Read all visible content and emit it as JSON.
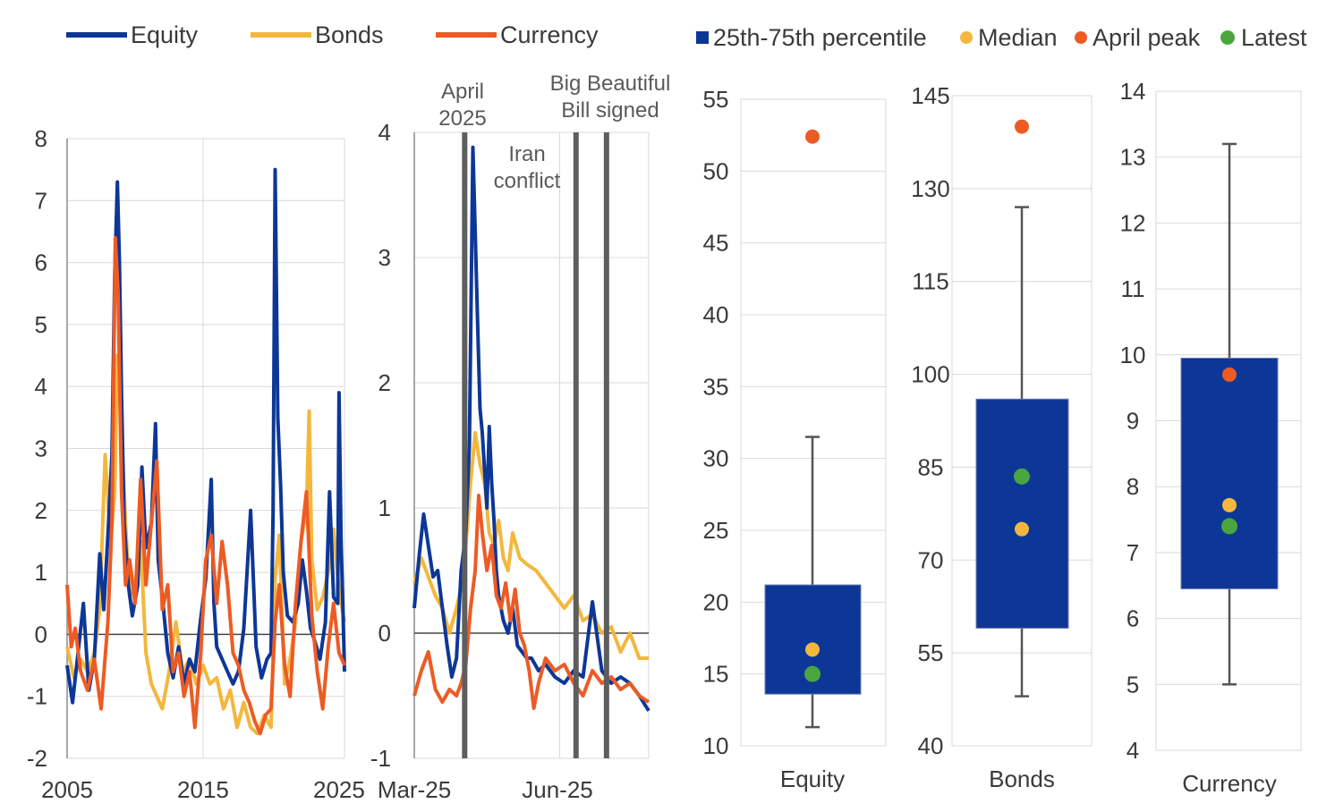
{
  "chart_data": [
    {
      "type": "line",
      "panel": "long-history",
      "x_range": [
        2005,
        2025.4
      ],
      "xticks": [
        "2005",
        "2015",
        "2025"
      ],
      "ylim": [
        -2,
        8
      ],
      "yticks": [
        "-2",
        "-1",
        "0",
        "1",
        "2",
        "3",
        "4",
        "5",
        "6",
        "7",
        "8"
      ],
      "legend": [
        "Equity",
        "Bonds",
        "Currency"
      ],
      "colors": {
        "Equity": "#0d3797",
        "Bonds": "#f3b73d",
        "Currency": "#ed5b24"
      },
      "series": [
        {
          "name": "Equity",
          "x": [
            2005,
            2005.4,
            2005.8,
            2006.2,
            2006.6,
            2007,
            2007.4,
            2007.7,
            2008,
            2008.3,
            2008.5,
            2008.7,
            2008.85,
            2009,
            2009.2,
            2009.5,
            2009.8,
            2010.2,
            2010.5,
            2010.8,
            2011.2,
            2011.5,
            2011.7,
            2012,
            2012.4,
            2012.8,
            2013.2,
            2013.6,
            2014,
            2014.4,
            2014.8,
            2015.2,
            2015.6,
            2015.8,
            2016,
            2016.4,
            2016.8,
            2017.2,
            2017.6,
            2018,
            2018.5,
            2018.9,
            2019.3,
            2019.7,
            2020,
            2020.15,
            2020.3,
            2020.5,
            2020.7,
            2020.9,
            2021.2,
            2021.6,
            2022,
            2022.3,
            2022.6,
            2022.9,
            2023.2,
            2023.6,
            2024,
            2024.3,
            2024.6,
            2024.9,
            2025,
            2025.15,
            2025.3,
            2025.4
          ],
          "values": [
            -0.5,
            -1.1,
            -0.3,
            0.5,
            -0.9,
            -0.4,
            1.3,
            0.4,
            1.6,
            2.9,
            5.8,
            7.3,
            6.0,
            3.9,
            1.8,
            0.8,
            0.3,
            0.8,
            2.7,
            1.4,
            1.8,
            3.4,
            1.2,
            0.6,
            -0.3,
            -0.7,
            -0.2,
            -0.8,
            -0.4,
            -0.6,
            0.2,
            0.9,
            2.5,
            0.5,
            -0.2,
            -0.4,
            -0.6,
            -0.8,
            -0.6,
            0.1,
            2.0,
            -0.2,
            -0.7,
            -0.4,
            -0.3,
            2.0,
            7.5,
            3.5,
            2.4,
            1.0,
            0.3,
            0.2,
            0.5,
            1.2,
            0.7,
            0.1,
            -0.1,
            -0.4,
            0.2,
            2.3,
            0.6,
            0.5,
            3.9,
            1.5,
            0.3,
            -0.6
          ]
        },
        {
          "name": "Bonds",
          "x": [
            2005,
            2005.5,
            2006,
            2006.5,
            2007,
            2007.4,
            2007.8,
            2008.2,
            2008.5,
            2008.7,
            2009,
            2009.3,
            2009.6,
            2010,
            2010.4,
            2010.8,
            2011.2,
            2011.6,
            2012,
            2012.5,
            2013,
            2013.5,
            2014,
            2014.5,
            2015,
            2015.5,
            2016,
            2016.5,
            2017,
            2017.5,
            2018,
            2018.5,
            2019,
            2019.5,
            2020,
            2020.3,
            2020.6,
            2021,
            2021.4,
            2021.8,
            2022.2,
            2022.6,
            2022.8,
            2023,
            2023.4,
            2023.8,
            2024.2,
            2024.6,
            2025,
            2025.4
          ],
          "values": [
            -0.2,
            -0.7,
            -0.4,
            -0.6,
            -0.3,
            0.4,
            2.9,
            1.5,
            2.3,
            4.5,
            3.3,
            1.8,
            0.6,
            0.8,
            1.5,
            -0.3,
            -0.8,
            -1.0,
            -1.2,
            -0.6,
            0.2,
            -0.6,
            -0.4,
            -0.8,
            -0.5,
            -0.8,
            -0.7,
            -1.2,
            -0.9,
            -1.5,
            -1.1,
            -1.5,
            -1.6,
            -1.3,
            -1.5,
            0.9,
            1.6,
            -0.8,
            -0.4,
            0.2,
            1.5,
            2.0,
            3.6,
            1.2,
            0.4,
            0.6,
            1.0,
            1.7,
            0.7,
            0.2
          ]
        },
        {
          "name": "Currency",
          "x": [
            2005,
            2005.3,
            2005.6,
            2006,
            2006.5,
            2007,
            2007.5,
            2008,
            2008.3,
            2008.55,
            2008.75,
            2009,
            2009.3,
            2009.6,
            2010,
            2010.4,
            2010.8,
            2011.2,
            2011.6,
            2012,
            2012.4,
            2012.8,
            2013.2,
            2013.6,
            2014,
            2014.4,
            2014.8,
            2015.2,
            2015.6,
            2016,
            2016.4,
            2016.8,
            2017.2,
            2017.6,
            2018,
            2018.4,
            2018.8,
            2019.2,
            2019.6,
            2020,
            2020.3,
            2020.6,
            2021,
            2021.4,
            2021.8,
            2022.2,
            2022.6,
            2023,
            2023.4,
            2023.8,
            2024.2,
            2024.6,
            2025,
            2025.2,
            2025.4
          ],
          "values": [
            0.8,
            -0.2,
            0.1,
            -0.6,
            -0.9,
            -0.4,
            -1.2,
            0.2,
            1.8,
            6.4,
            5.5,
            2.3,
            0.8,
            1.2,
            0.5,
            2.5,
            0.8,
            1.8,
            2.8,
            0.4,
            0.8,
            -0.6,
            -0.3,
            -1.0,
            -0.6,
            -1.5,
            -0.4,
            1.2,
            1.6,
            0.5,
            1.5,
            0.8,
            -0.3,
            -0.5,
            -0.9,
            -1.1,
            -1.4,
            -1.6,
            -1.3,
            -1.2,
            0.2,
            0.8,
            -0.5,
            -1.0,
            0.5,
            1.5,
            2.3,
            0.3,
            -0.6,
            -1.2,
            -0.2,
            0.5,
            -0.3,
            -0.4,
            -0.5
          ]
        }
      ]
    },
    {
      "type": "line",
      "panel": "recent",
      "x_range": [
        0,
        1
      ],
      "xticks": [
        "Mar-25",
        "Jun-25"
      ],
      "ylim": [
        -1,
        4
      ],
      "yticks": [
        "-1",
        "0",
        "1",
        "2",
        "3",
        "4"
      ],
      "events": [
        {
          "label": [
            "April",
            "2025"
          ],
          "x": 0.215
        },
        {
          "label": [
            "Iran",
            "conflict"
          ],
          "x": 0.69
        },
        {
          "label": [
            "Big Beautiful",
            "Bill signed"
          ],
          "x": 0.82
        }
      ],
      "series": [
        {
          "name": "Equity",
          "x": [
            0,
            0.02,
            0.04,
            0.06,
            0.08,
            0.1,
            0.12,
            0.14,
            0.16,
            0.18,
            0.2,
            0.22,
            0.235,
            0.25,
            0.26,
            0.27,
            0.28,
            0.29,
            0.3,
            0.31,
            0.32,
            0.33,
            0.34,
            0.35,
            0.36,
            0.38,
            0.4,
            0.42,
            0.44,
            0.46,
            0.48,
            0.5,
            0.53,
            0.56,
            0.6,
            0.64,
            0.68,
            0.72,
            0.76,
            0.8,
            0.84,
            0.88,
            0.92,
            0.96,
            1.0
          ],
          "values": [
            0.2,
            0.6,
            0.95,
            0.7,
            0.45,
            0.5,
            0.2,
            -0.1,
            -0.35,
            -0.2,
            0.5,
            0.8,
            1.5,
            3.88,
            3.2,
            2.5,
            1.8,
            1.6,
            1.3,
            1.0,
            1.65,
            1.2,
            0.9,
            0.5,
            0.3,
            0.1,
            0.0,
            0.2,
            -0.1,
            -0.15,
            -0.2,
            -0.2,
            -0.3,
            -0.25,
            -0.35,
            -0.4,
            -0.3,
            -0.35,
            0.25,
            -0.3,
            -0.4,
            -0.35,
            -0.4,
            -0.5,
            -0.62
          ]
        },
        {
          "name": "Bonds",
          "x": [
            0,
            0.03,
            0.06,
            0.09,
            0.12,
            0.15,
            0.18,
            0.21,
            0.24,
            0.26,
            0.28,
            0.3,
            0.32,
            0.34,
            0.36,
            0.38,
            0.4,
            0.42,
            0.45,
            0.48,
            0.52,
            0.56,
            0.6,
            0.64,
            0.68,
            0.72,
            0.76,
            0.8,
            0.84,
            0.88,
            0.92,
            0.96,
            1.0
          ],
          "values": [
            0.4,
            0.6,
            0.45,
            0.3,
            0.2,
            0.0,
            0.2,
            0.45,
            1.2,
            1.6,
            1.35,
            1.2,
            0.8,
            0.7,
            0.9,
            0.6,
            0.5,
            0.8,
            0.6,
            0.55,
            0.5,
            0.4,
            0.3,
            0.2,
            0.3,
            0.1,
            0.15,
            0.0,
            0.05,
            -0.15,
            0.0,
            -0.2,
            -0.2
          ]
        },
        {
          "name": "Currency",
          "x": [
            0,
            0.03,
            0.06,
            0.09,
            0.12,
            0.15,
            0.18,
            0.2,
            0.22,
            0.24,
            0.26,
            0.275,
            0.29,
            0.31,
            0.33,
            0.35,
            0.37,
            0.39,
            0.41,
            0.43,
            0.45,
            0.47,
            0.49,
            0.51,
            0.53,
            0.56,
            0.6,
            0.64,
            0.68,
            0.72,
            0.76,
            0.8,
            0.84,
            0.88,
            0.92,
            0.96,
            1.0
          ],
          "values": [
            -0.5,
            -0.3,
            -0.15,
            -0.45,
            -0.55,
            -0.45,
            -0.5,
            -0.4,
            -0.25,
            0.2,
            0.5,
            1.1,
            0.8,
            0.5,
            0.7,
            0.3,
            0.2,
            0.4,
            0.1,
            0.35,
            0.0,
            -0.1,
            -0.3,
            -0.6,
            -0.4,
            -0.2,
            -0.3,
            -0.25,
            -0.4,
            -0.5,
            -0.3,
            -0.4,
            -0.35,
            -0.45,
            -0.4,
            -0.5,
            -0.55
          ]
        }
      ]
    },
    {
      "type": "box",
      "category": "Equity",
      "ylim": [
        10,
        55
      ],
      "yticks": [
        "10",
        "15",
        "20",
        "25",
        "30",
        "35",
        "40",
        "45",
        "50",
        "55"
      ],
      "whisker_low": 11.3,
      "q1": 13.6,
      "q3": 21.2,
      "whisker_high": 31.5,
      "median": 16.7,
      "april_peak": 52.4,
      "latest": 15.0
    },
    {
      "type": "box",
      "category": "Bonds",
      "ylim": [
        40,
        145
      ],
      "yticks": [
        "40",
        "55",
        "70",
        "85",
        "100",
        "115",
        "130",
        "145"
      ],
      "whisker_low": 48,
      "q1": 59,
      "q3": 96,
      "whisker_high": 127,
      "median": 75,
      "april_peak": 140,
      "latest": 83.5
    },
    {
      "type": "box",
      "category": "Currency",
      "ylim": [
        4,
        14
      ],
      "yticks": [
        "4",
        "5",
        "6",
        "7",
        "8",
        "9",
        "10",
        "11",
        "12",
        "13",
        "14"
      ],
      "whisker_low": 5.0,
      "q1": 6.45,
      "q3": 9.95,
      "whisker_high": 13.2,
      "median": 7.72,
      "april_peak": 9.7,
      "latest": 7.4
    }
  ],
  "box_legend": [
    "25th-75th percentile",
    "Median",
    "April peak",
    "Latest"
  ],
  "box_colors": {
    "box": "#0d3797",
    "median": "#f3b73d",
    "april_peak": "#ed5b24",
    "latest": "#4aa63e",
    "whisker": "#555555"
  }
}
